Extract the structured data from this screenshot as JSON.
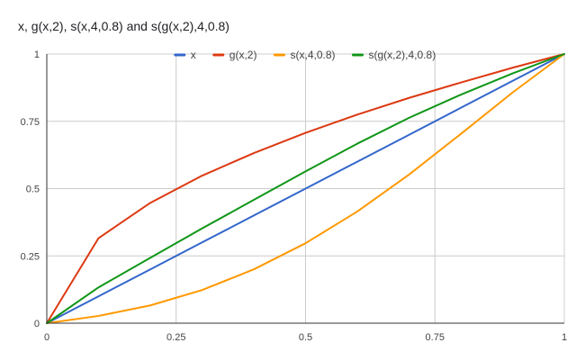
{
  "chart_data": {
    "type": "line",
    "title": "x, g(x,2), s(x,4,0.8) and s(g(x,2),4,0.8)",
    "xlabel": "",
    "ylabel": "",
    "xlim": [
      0,
      1
    ],
    "ylim": [
      0,
      1
    ],
    "xticks": [
      "0",
      "0.25",
      "0.5",
      "0.75",
      "1"
    ],
    "yticks": [
      "0",
      "0.25",
      "0.5",
      "0.75",
      "1"
    ],
    "grid": true,
    "legend_position": "top",
    "x": [
      0,
      0.1,
      0.2,
      0.3,
      0.4,
      0.5,
      0.6,
      0.7,
      0.8,
      0.9,
      1.0
    ],
    "series": [
      {
        "name": "x",
        "color": "#3366cc",
        "values": [
          0,
          0.1,
          0.2,
          0.3,
          0.4,
          0.5,
          0.6,
          0.7,
          0.8,
          0.9,
          1.0
        ]
      },
      {
        "name": "g(x,2)",
        "color": "#dc3912",
        "values": [
          0,
          0.316,
          0.447,
          0.548,
          0.632,
          0.707,
          0.775,
          0.837,
          0.894,
          0.949,
          1.0
        ]
      },
      {
        "name": "s(x,4,0.8)",
        "color": "#ff9900",
        "values": [
          0,
          0.027,
          0.066,
          0.123,
          0.2,
          0.297,
          0.415,
          0.552,
          0.703,
          0.857,
          1.0
        ]
      },
      {
        "name": "s(g(x,2),4,0.8)",
        "color": "#109618",
        "values": [
          0,
          0.133,
          0.243,
          0.352,
          0.458,
          0.564,
          0.667,
          0.763,
          0.849,
          0.928,
          1.0
        ]
      }
    ]
  }
}
